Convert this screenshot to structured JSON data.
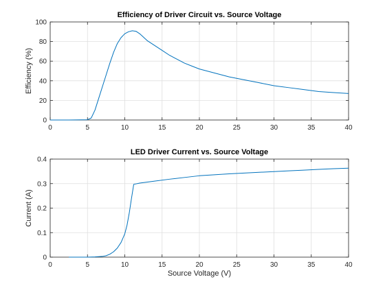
{
  "colors": {
    "series": "#0072BD",
    "grid": "#dfdfdf",
    "axis": "#262626"
  },
  "chart_data": [
    {
      "type": "line",
      "title": "Efficiency of Driver Circuit vs. Source Voltage",
      "xlabel": "",
      "ylabel": "Efficiency (%)",
      "xlim": [
        0,
        40
      ],
      "ylim": [
        0,
        100
      ],
      "grid": true,
      "xticks": [
        0,
        5,
        10,
        15,
        20,
        25,
        30,
        35,
        40
      ],
      "yticks": [
        0,
        20,
        40,
        60,
        80,
        100
      ],
      "xtick_labels": [
        "0",
        "5",
        "10",
        "15",
        "20",
        "25",
        "30",
        "35",
        "40"
      ],
      "ytick_labels": [
        "0",
        "20",
        "40",
        "60",
        "80",
        "100"
      ],
      "series": [
        {
          "x": [
            0,
            2.5,
            5,
            5.5,
            6,
            6.5,
            7,
            7.5,
            8,
            8.5,
            9,
            9.5,
            10,
            10.5,
            11,
            11.5,
            12,
            13,
            14,
            15,
            16,
            17,
            18,
            19,
            20,
            22,
            24,
            26,
            28,
            30,
            32,
            34,
            36,
            38,
            40
          ],
          "y": [
            0,
            0,
            0.3,
            2,
            10,
            22,
            34,
            46,
            58,
            69,
            78,
            84,
            88,
            90,
            91,
            90.5,
            88,
            81,
            76,
            71,
            66,
            62,
            58,
            55,
            52,
            48,
            44,
            41,
            38,
            35,
            33,
            31,
            29,
            28,
            27
          ]
        }
      ]
    },
    {
      "type": "line",
      "title": "LED Driver Current vs. Source Voltage",
      "xlabel": "Source Voltage (V)",
      "ylabel": "Current (A)",
      "xlim": [
        0,
        40
      ],
      "ylim": [
        0,
        0.4
      ],
      "grid": true,
      "xticks": [
        0,
        5,
        10,
        15,
        20,
        25,
        30,
        35,
        40
      ],
      "yticks": [
        0,
        0.1,
        0.2,
        0.3,
        0.4
      ],
      "xtick_labels": [
        "0",
        "5",
        "10",
        "15",
        "20",
        "25",
        "30",
        "35",
        "40"
      ],
      "ytick_labels": [
        "0",
        "0.1",
        "0.2",
        "0.3",
        "0.4"
      ],
      "series": [
        {
          "x": [
            2.5,
            5,
            6,
            7,
            7.5,
            8,
            8.5,
            9,
            9.5,
            10,
            10.3,
            10.6,
            10.9,
            11.2,
            12,
            14,
            16,
            18,
            20,
            22,
            24,
            26,
            28,
            30,
            32,
            34,
            36,
            38,
            40
          ],
          "y": [
            0,
            0,
            0.001,
            0.003,
            0.006,
            0.012,
            0.022,
            0.037,
            0.06,
            0.095,
            0.13,
            0.18,
            0.24,
            0.297,
            0.302,
            0.31,
            0.318,
            0.325,
            0.332,
            0.336,
            0.34,
            0.343,
            0.346,
            0.349,
            0.352,
            0.355,
            0.358,
            0.361,
            0.363
          ]
        }
      ]
    }
  ]
}
